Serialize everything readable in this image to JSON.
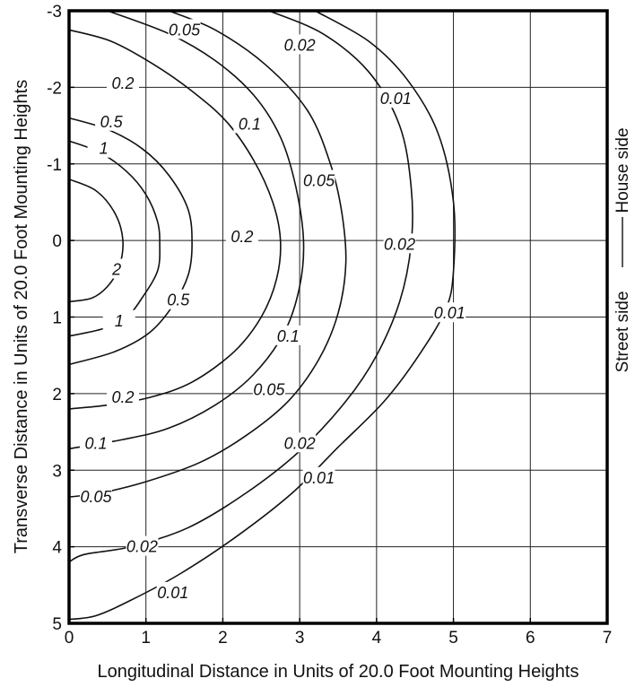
{
  "chart_data": {
    "type": "contour",
    "xlabel": "Longitudinal Distance in Units of 20.0 Foot Mounting Heights",
    "ylabel": "Transverse Distance in Units of 20.0 Foot Mounting Heights",
    "xlim": [
      0,
      7
    ],
    "ylim": [
      -3,
      5
    ],
    "y_inverted": true,
    "grid": true,
    "x_ticks": [
      "0",
      "1",
      "2",
      "3",
      "4",
      "5",
      "6",
      "7"
    ],
    "y_ticks": [
      "-3",
      "-2",
      "-1",
      "0",
      "1",
      "2",
      "3",
      "4",
      "5"
    ],
    "side_labels": {
      "top": "House side",
      "bottom": "Street side"
    },
    "contours": [
      {
        "label": "2",
        "points": [
          [
            0,
            -0.8
          ],
          [
            0.35,
            -0.65
          ],
          [
            0.6,
            -0.35
          ],
          [
            0.7,
            0
          ],
          [
            0.65,
            0.35
          ],
          [
            0.5,
            0.6
          ],
          [
            0.3,
            0.75
          ],
          [
            0,
            0.8
          ]
        ],
        "label_at": [
          0.62,
          0.38
        ]
      },
      {
        "label": "1",
        "points": [
          [
            0,
            -1.3
          ],
          [
            0.4,
            -1.15
          ],
          [
            0.75,
            -0.9
          ],
          [
            1.0,
            -0.6
          ],
          [
            1.15,
            -0.25
          ],
          [
            1.18,
            0.05
          ],
          [
            1.15,
            0.4
          ],
          [
            0.95,
            0.75
          ],
          [
            0.75,
            1.0
          ],
          [
            0.45,
            1.15
          ],
          [
            0,
            1.25
          ]
        ],
        "label_at": [
          0.45,
          -1.2
        ]
      },
      {
        "label": "1",
        "points": [],
        "label_at": [
          0.65,
          1.05
        ]
      },
      {
        "label": "0.5",
        "points": [
          [
            0,
            -1.6
          ],
          [
            0.5,
            -1.45
          ],
          [
            0.95,
            -1.2
          ],
          [
            1.3,
            -0.85
          ],
          [
            1.55,
            -0.4
          ],
          [
            1.6,
            0.05
          ],
          [
            1.55,
            0.45
          ],
          [
            1.35,
            0.85
          ],
          [
            1.05,
            1.2
          ],
          [
            0.6,
            1.45
          ],
          [
            0,
            1.62
          ]
        ],
        "label_at": [
          0.55,
          -1.55
        ]
      },
      {
        "label": "0.5",
        "points": [],
        "label_at": [
          1.42,
          0.78
        ]
      },
      {
        "label": "0.2",
        "points": [
          [
            0,
            -2.75
          ],
          [
            0.55,
            -2.6
          ],
          [
            1.1,
            -2.3
          ],
          [
            1.6,
            -1.95
          ],
          [
            2.05,
            -1.55
          ],
          [
            2.4,
            -1.05
          ],
          [
            2.65,
            -0.5
          ],
          [
            2.75,
            0
          ],
          [
            2.7,
            0.5
          ],
          [
            2.5,
            1.0
          ],
          [
            2.15,
            1.45
          ],
          [
            1.6,
            1.85
          ],
          [
            1.05,
            2.05
          ],
          [
            0.5,
            2.15
          ],
          [
            0,
            2.2
          ]
        ],
        "label_at": [
          0.7,
          -2.05
        ]
      },
      {
        "label": "0.2",
        "points": [],
        "label_at": [
          2.25,
          -0.05
        ]
      },
      {
        "label": "0.2",
        "points": [],
        "label_at": [
          2.25,
          -0.05
        ]
      },
      {
        "label": "0.2",
        "points": [],
        "label_at": [
          0.7,
          2.05
        ]
      },
      {
        "label": "0.1",
        "points": [
          [
            0.5,
            -3
          ],
          [
            1.3,
            -2.7
          ],
          [
            1.9,
            -2.35
          ],
          [
            2.4,
            -1.9
          ],
          [
            2.75,
            -1.35
          ],
          [
            2.95,
            -0.7
          ],
          [
            3.05,
            0
          ],
          [
            3.0,
            0.6
          ],
          [
            2.8,
            1.2
          ],
          [
            2.4,
            1.75
          ],
          [
            1.9,
            2.15
          ],
          [
            1.3,
            2.45
          ],
          [
            0.7,
            2.6
          ],
          [
            0,
            2.72
          ]
        ],
        "label_at": [
          2.35,
          -1.52
        ]
      },
      {
        "label": "0.1",
        "points": [],
        "label_at": [
          0.35,
          2.65
        ]
      },
      {
        "label": "0.1",
        "points": [],
        "label_at": [
          2.85,
          1.25
        ]
      },
      {
        "label": "0.05",
        "points": [
          [
            1.3,
            -3
          ],
          [
            1.9,
            -2.75
          ],
          [
            2.55,
            -2.3
          ],
          [
            3.1,
            -1.7
          ],
          [
            3.4,
            -1.0
          ],
          [
            3.55,
            -0.35
          ],
          [
            3.6,
            0.3
          ],
          [
            3.5,
            0.95
          ],
          [
            3.25,
            1.55
          ],
          [
            2.85,
            2.1
          ],
          [
            2.3,
            2.55
          ],
          [
            1.7,
            2.9
          ],
          [
            1.0,
            3.15
          ],
          [
            0.4,
            3.3
          ],
          [
            0,
            3.35
          ]
        ],
        "label_at": [
          1.5,
          -2.75
        ]
      },
      {
        "label": "0.05",
        "points": [],
        "label_at": [
          3.25,
          -0.78
        ]
      },
      {
        "label": "0.05",
        "points": [],
        "label_at": [
          0.35,
          3.35
        ]
      },
      {
        "label": "0.05",
        "points": [],
        "label_at": [
          2.6,
          1.95
        ]
      },
      {
        "label": "0.02",
        "points": [
          [
            2.6,
            -3
          ],
          [
            3.3,
            -2.7
          ],
          [
            3.9,
            -2.2
          ],
          [
            4.3,
            -1.5
          ],
          [
            4.45,
            -0.7
          ],
          [
            4.45,
            0.05
          ],
          [
            4.3,
            0.8
          ],
          [
            4.0,
            1.5
          ],
          [
            3.6,
            2.1
          ],
          [
            3.0,
            2.75
          ],
          [
            2.3,
            3.3
          ],
          [
            1.55,
            3.75
          ],
          [
            0.8,
            4.0
          ],
          [
            0.2,
            4.1
          ],
          [
            0,
            4.2
          ]
        ],
        "label_at": [
          3.0,
          -2.55
        ]
      },
      {
        "label": "0.02",
        "points": [],
        "label_at": [
          4.3,
          0.05
        ]
      },
      {
        "label": "0.02",
        "points": [],
        "label_at": [
          3.0,
          2.65
        ]
      },
      {
        "label": "0.02",
        "points": [],
        "label_at": [
          0.95,
          4.0
        ]
      },
      {
        "label": "0.01",
        "points": [
          [
            3.2,
            -3
          ],
          [
            3.9,
            -2.6
          ],
          [
            4.4,
            -2.1
          ],
          [
            4.8,
            -1.4
          ],
          [
            5.0,
            -0.5
          ],
          [
            5.0,
            0.4
          ],
          [
            4.9,
            0.9
          ],
          [
            4.55,
            1.5
          ],
          [
            4.1,
            2.1
          ],
          [
            3.5,
            2.7
          ],
          [
            2.9,
            3.3
          ],
          [
            2.2,
            3.85
          ],
          [
            1.45,
            4.35
          ],
          [
            0.8,
            4.7
          ],
          [
            0.35,
            4.9
          ],
          [
            0,
            4.95
          ]
        ],
        "label_at": [
          4.25,
          -1.85
        ]
      },
      {
        "label": "0.01",
        "points": [],
        "label_at": [
          4.95,
          0.95
        ]
      },
      {
        "label": "0.01",
        "points": [],
        "label_at": [
          3.25,
          3.1
        ]
      },
      {
        "label": "0.01",
        "points": [],
        "label_at": [
          1.35,
          4.6
        ]
      }
    ]
  }
}
